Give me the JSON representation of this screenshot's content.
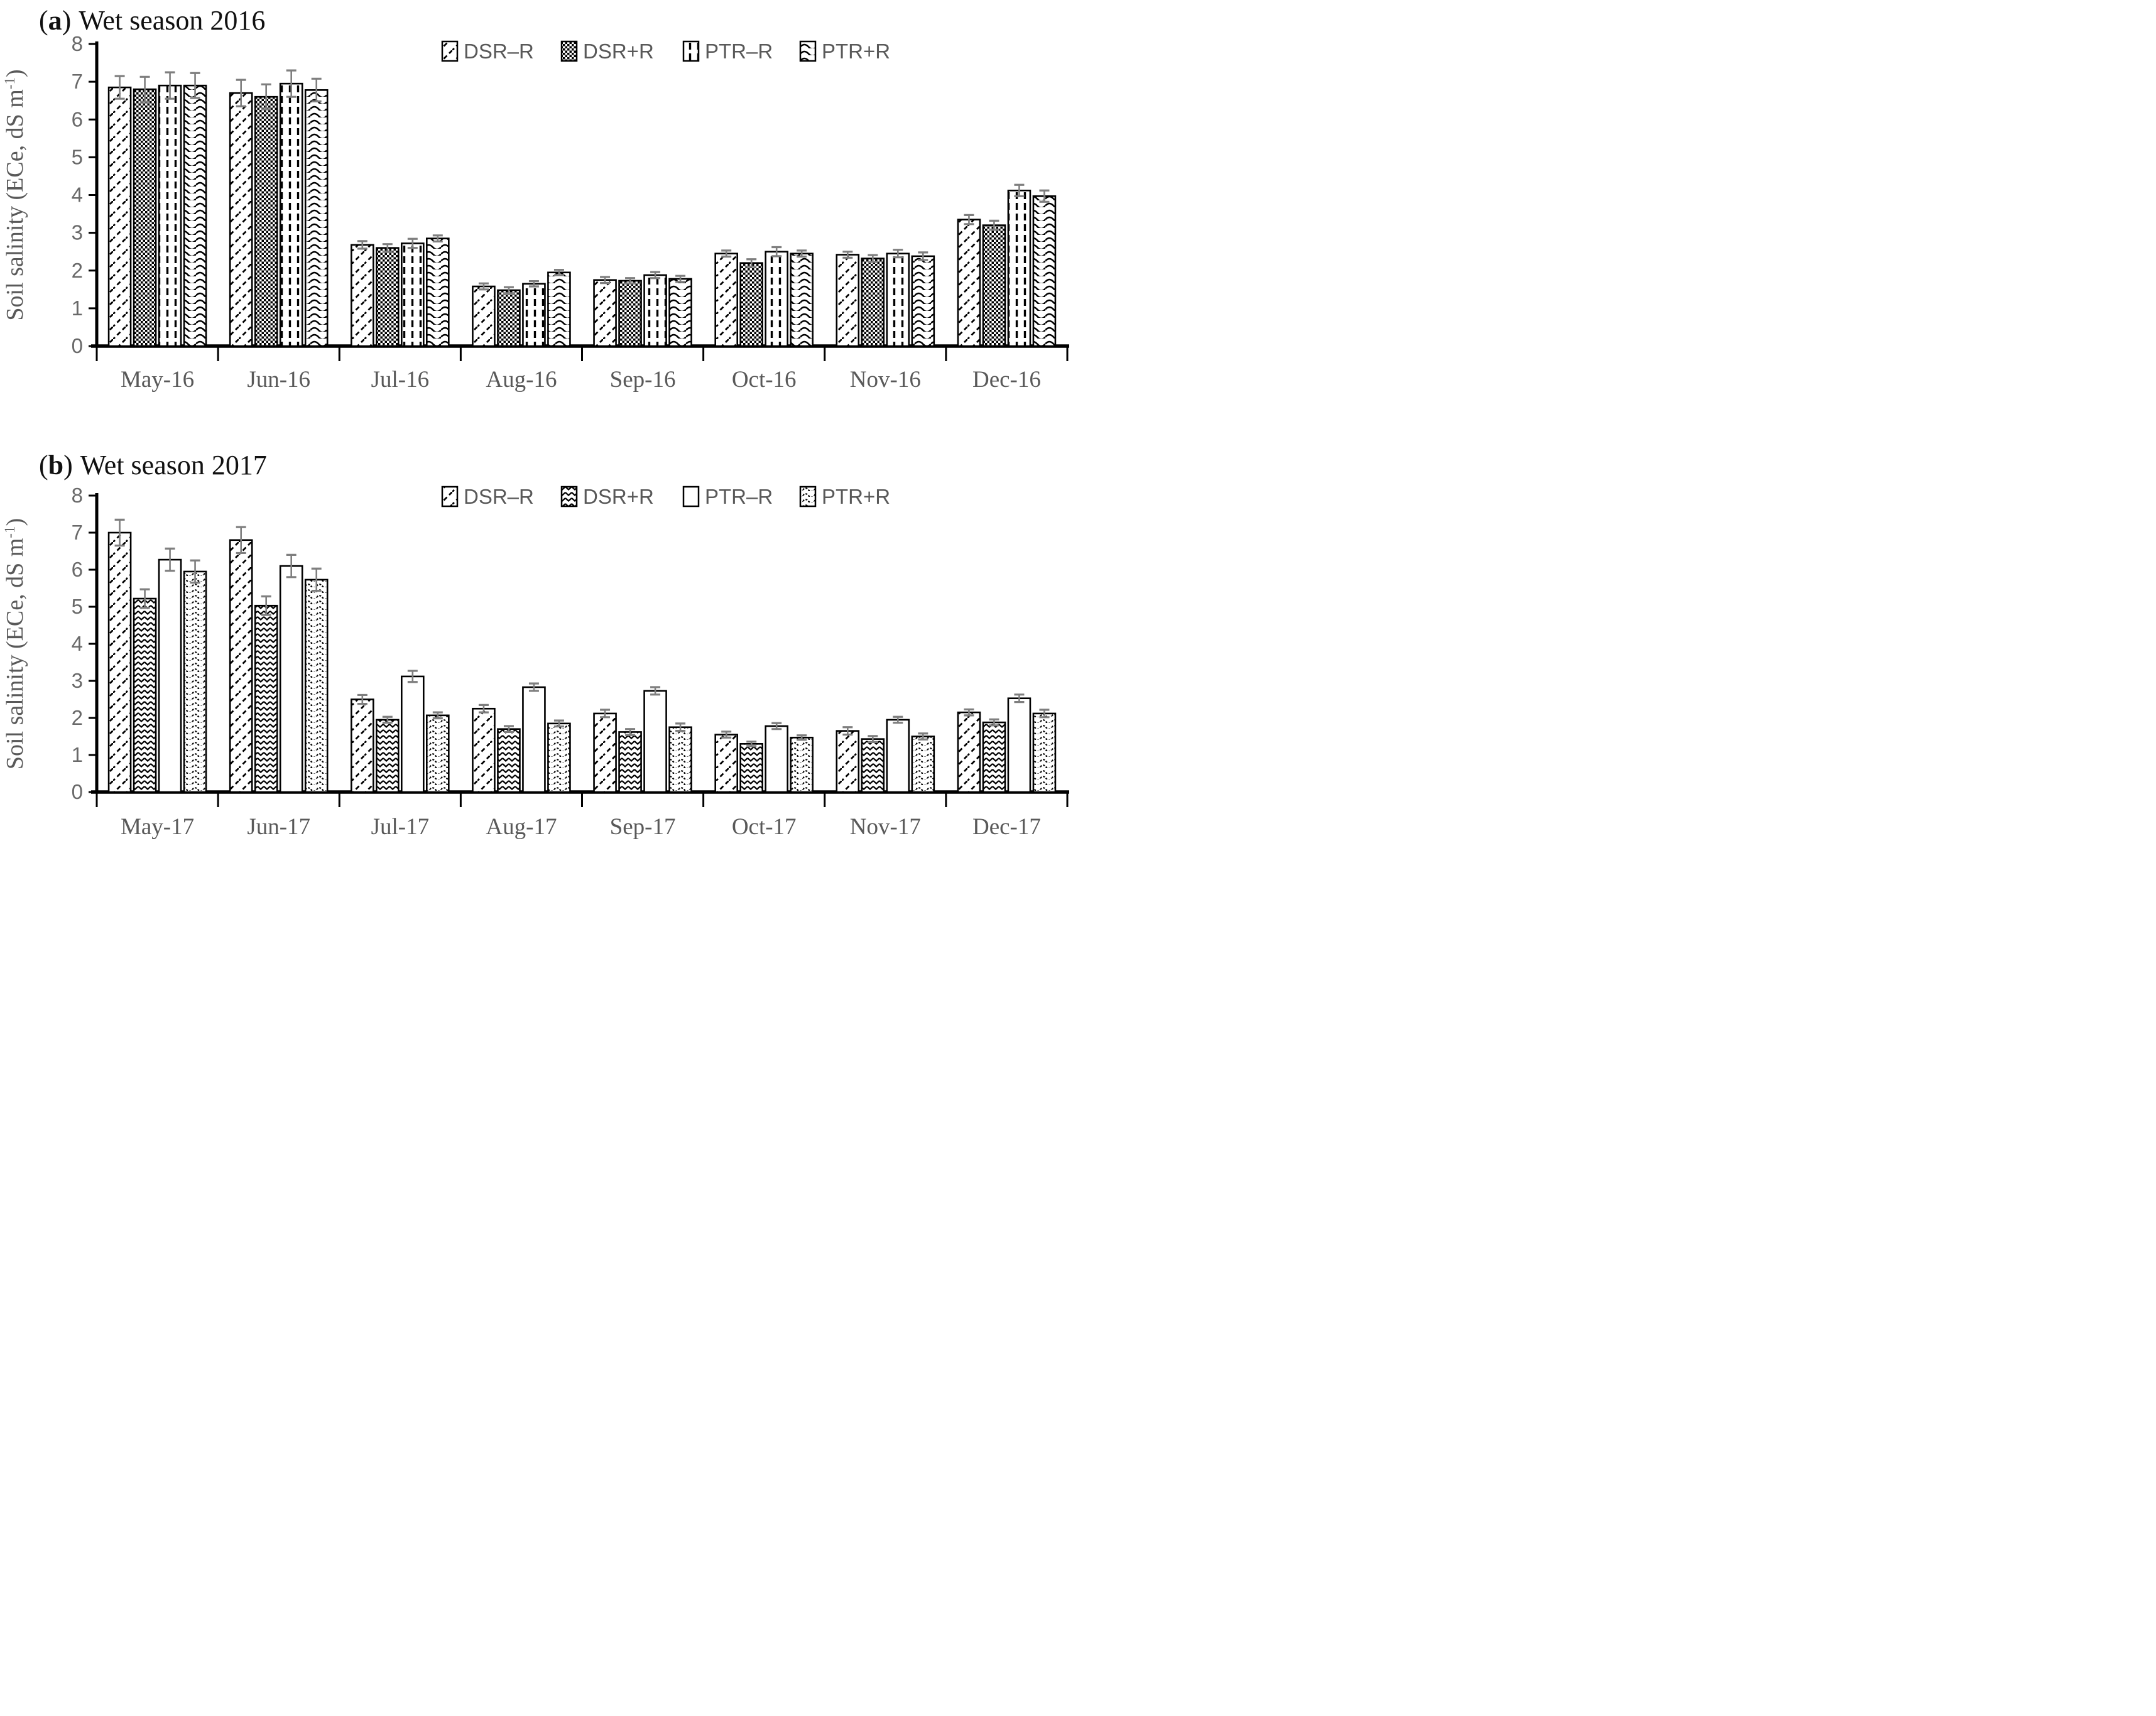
{
  "chart_data": [
    {
      "type": "bar",
      "panel_label": "a",
      "title": "Wet season 2016",
      "ylabel": {
        "text": "Soil salinity (ECe, dS m",
        "sup": "-1",
        "end": ")"
      },
      "ylim": [
        0,
        8
      ],
      "yticks": [
        0,
        1,
        2,
        3,
        4,
        5,
        6,
        7,
        8
      ],
      "grid": false,
      "legend_position": "top",
      "categories": [
        "May-16",
        "Jun-16",
        "Jul-16",
        "Aug-16",
        "Sep-16",
        "Oct-16",
        "Nov-16",
        "Dec-16"
      ],
      "series": [
        {
          "name": "DSR–R",
          "pattern": "diagdash",
          "values": [
            6.85,
            6.7,
            2.68,
            1.58,
            1.75,
            2.45,
            2.42,
            3.35
          ],
          "errors": [
            0.3,
            0.35,
            0.1,
            0.08,
            0.08,
            0.08,
            0.08,
            0.12
          ]
        },
        {
          "name": "DSR+R",
          "pattern": "checker",
          "values": [
            6.8,
            6.6,
            2.6,
            1.48,
            1.73,
            2.2,
            2.32,
            3.2
          ],
          "errors": [
            0.33,
            0.33,
            0.1,
            0.08,
            0.07,
            0.1,
            0.09,
            0.12
          ]
        },
        {
          "name": "PTR–R",
          "pattern": "vdash",
          "values": [
            6.9,
            6.95,
            2.72,
            1.65,
            1.88,
            2.5,
            2.45,
            4.12
          ],
          "errors": [
            0.35,
            0.35,
            0.12,
            0.07,
            0.08,
            0.12,
            0.1,
            0.15
          ]
        },
        {
          "name": "PTR+R",
          "pattern": "wave",
          "values": [
            6.9,
            6.78,
            2.85,
            1.95,
            1.78,
            2.45,
            2.38,
            3.97
          ],
          "errors": [
            0.33,
            0.3,
            0.08,
            0.07,
            0.08,
            0.08,
            0.1,
            0.15
          ]
        }
      ]
    },
    {
      "type": "bar",
      "panel_label": "b",
      "title": "Wet season 2017",
      "ylabel": {
        "text": "Soil salinity (ECe, dS m",
        "sup": "-1",
        "end": ")"
      },
      "ylim": [
        0,
        8
      ],
      "yticks": [
        0,
        1,
        2,
        3,
        4,
        5,
        6,
        7,
        8
      ],
      "grid": false,
      "legend_position": "top",
      "categories": [
        "May-17",
        "Jun-17",
        "Jul-17",
        "Aug-17",
        "Sep-17",
        "Oct-17",
        "Nov-17",
        "Dec-17"
      ],
      "series": [
        {
          "name": "DSR–R",
          "pattern": "diagdash",
          "values": [
            7.0,
            6.8,
            2.5,
            2.25,
            2.12,
            1.55,
            1.65,
            2.15
          ],
          "errors": [
            0.35,
            0.35,
            0.12,
            0.1,
            0.1,
            0.08,
            0.1,
            0.08
          ]
        },
        {
          "name": "DSR+R",
          "pattern": "zigzag",
          "values": [
            5.22,
            5.03,
            1.95,
            1.7,
            1.62,
            1.3,
            1.43,
            1.88
          ],
          "errors": [
            0.25,
            0.25,
            0.08,
            0.08,
            0.08,
            0.06,
            0.08,
            0.08
          ]
        },
        {
          "name": "PTR–R",
          "pattern": "plain",
          "values": [
            6.27,
            6.1,
            3.12,
            2.83,
            2.73,
            1.78,
            1.95,
            2.53
          ],
          "errors": [
            0.3,
            0.3,
            0.15,
            0.1,
            0.1,
            0.08,
            0.08,
            0.1
          ]
        },
        {
          "name": "PTR+R",
          "pattern": "wavedot",
          "values": [
            5.95,
            5.73,
            2.07,
            1.85,
            1.75,
            1.47,
            1.5,
            2.12
          ],
          "errors": [
            0.3,
            0.3,
            0.08,
            0.08,
            0.1,
            0.06,
            0.08,
            0.1
          ]
        }
      ]
    }
  ]
}
